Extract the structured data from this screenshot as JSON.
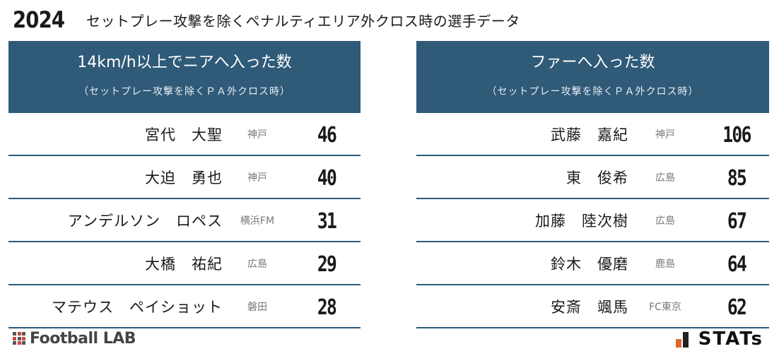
{
  "header": {
    "year": "2024",
    "title": "セットプレー攻撃を除くペナルティエリア外クロス時の選手データ"
  },
  "left_panel": {
    "title": "14km/h以上でニアへ入った数",
    "subtitle": "（セットプレー攻撃を除くＰＡ外クロス時）",
    "rows": [
      {
        "name": "宮代　大聖",
        "team": "神戸",
        "value": "46"
      },
      {
        "name": "大迫　勇也",
        "team": "神戸",
        "value": "40"
      },
      {
        "name": "アンデルソン　ロペス",
        "team": "横浜FM",
        "value": "31"
      },
      {
        "name": "大橋　祐紀",
        "team": "広島",
        "value": "29"
      },
      {
        "name": "マテウス　ペイショット",
        "team": "磐田",
        "value": "28"
      }
    ]
  },
  "right_panel": {
    "title": "ファーへ入った数",
    "subtitle": "（セットプレー攻撃を除くＰＡ外クロス時）",
    "rows": [
      {
        "name": "武藤　嘉紀",
        "team": "神戸",
        "value": "106"
      },
      {
        "name": "東　俊希",
        "team": "広島",
        "value": "85"
      },
      {
        "name": "加藤　陸次樹",
        "team": "広島",
        "value": "67"
      },
      {
        "name": "鈴木　優磨",
        "team": "鹿島",
        "value": "64"
      },
      {
        "name": "安斎　颯馬",
        "team": "FC東京",
        "value": "62"
      }
    ]
  },
  "footer": {
    "left_logo": "Football LAB",
    "right_logo": "STATs"
  },
  "colors": {
    "header_bg": "#2f5a78",
    "divider": "#2f5a78",
    "team_text": "#777777"
  }
}
